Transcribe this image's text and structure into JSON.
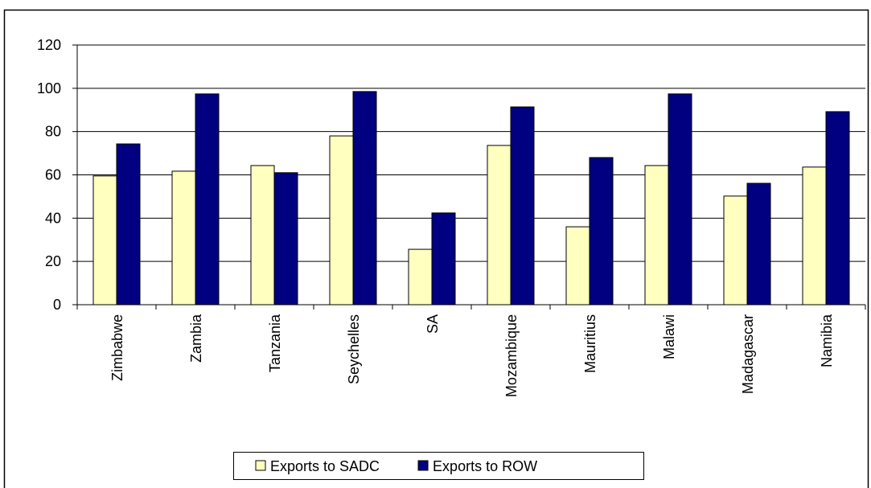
{
  "chart_data": {
    "type": "bar",
    "categories": [
      "Zimbabwe",
      "Zambia",
      "Tanzania",
      "Seychelles",
      "SA",
      "Mozambique",
      "Mauritius",
      "Malawi",
      "Madagascar",
      "Namibia"
    ],
    "series": [
      {
        "name": "Exports to SADC",
        "color": "#ffffc0",
        "values": [
          59.5,
          61.7,
          64.3,
          78,
          25.6,
          73.6,
          36,
          64.3,
          50.2,
          63.6
        ]
      },
      {
        "name": "Exports to ROW",
        "color": "#000080",
        "values": [
          74.3,
          97.4,
          61,
          98.5,
          42.4,
          91.4,
          68,
          97.4,
          56.1,
          89.2
        ]
      }
    ],
    "ylim": [
      0,
      120
    ],
    "yticks": [
      0,
      20,
      40,
      60,
      80,
      100,
      120
    ],
    "grid": true,
    "legend": "bottom"
  }
}
